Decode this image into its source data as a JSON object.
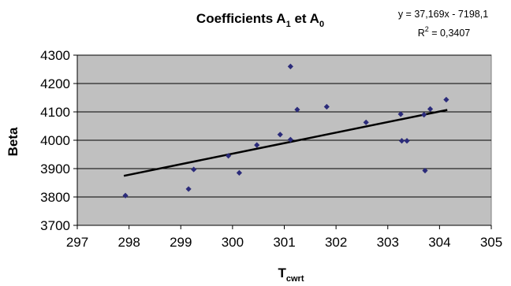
{
  "chart_data": {
    "type": "scatter",
    "title": {
      "main": "Coefficients A",
      "sub1": "1",
      "mid": " et A",
      "sub2": "0"
    },
    "xlabel": {
      "main": "T",
      "sub": "cwrt"
    },
    "ylabel": "Beta",
    "xlim": [
      297,
      305
    ],
    "ylim": [
      3700,
      4300
    ],
    "x_ticks": [
      297,
      298,
      299,
      300,
      301,
      302,
      303,
      304,
      305
    ],
    "y_ticks": [
      3700,
      3800,
      3900,
      4000,
      4100,
      4200,
      4300
    ],
    "grid": "horizontal",
    "plot_background": "#c0c0c0",
    "marker_color": "#2b2b7a",
    "trendline": {
      "type": "linear",
      "slope": 37.169,
      "intercept": -7198.1,
      "x_range": [
        297.9,
        304.15
      ],
      "color": "#000000",
      "equation_label": "y = 37,169x - 7198,1",
      "r2_label": {
        "main": "R",
        "sup": "2",
        "rest": " = 0,3407"
      }
    },
    "series": [
      {
        "points": [
          [
            297.93,
            3805
          ],
          [
            299.15,
            3828
          ],
          [
            299.25,
            3897
          ],
          [
            299.92,
            3945
          ],
          [
            300.13,
            3885
          ],
          [
            300.47,
            3983
          ],
          [
            300.92,
            4020
          ],
          [
            301.12,
            4260
          ],
          [
            301.12,
            4002
          ],
          [
            301.25,
            4108
          ],
          [
            301.82,
            4118
          ],
          [
            302.58,
            4063
          ],
          [
            303.25,
            4092
          ],
          [
            303.27,
            3998
          ],
          [
            303.37,
            3998
          ],
          [
            303.7,
            4090
          ],
          [
            303.72,
            3893
          ],
          [
            303.82,
            4110
          ],
          [
            304.13,
            4143
          ]
        ]
      }
    ]
  }
}
